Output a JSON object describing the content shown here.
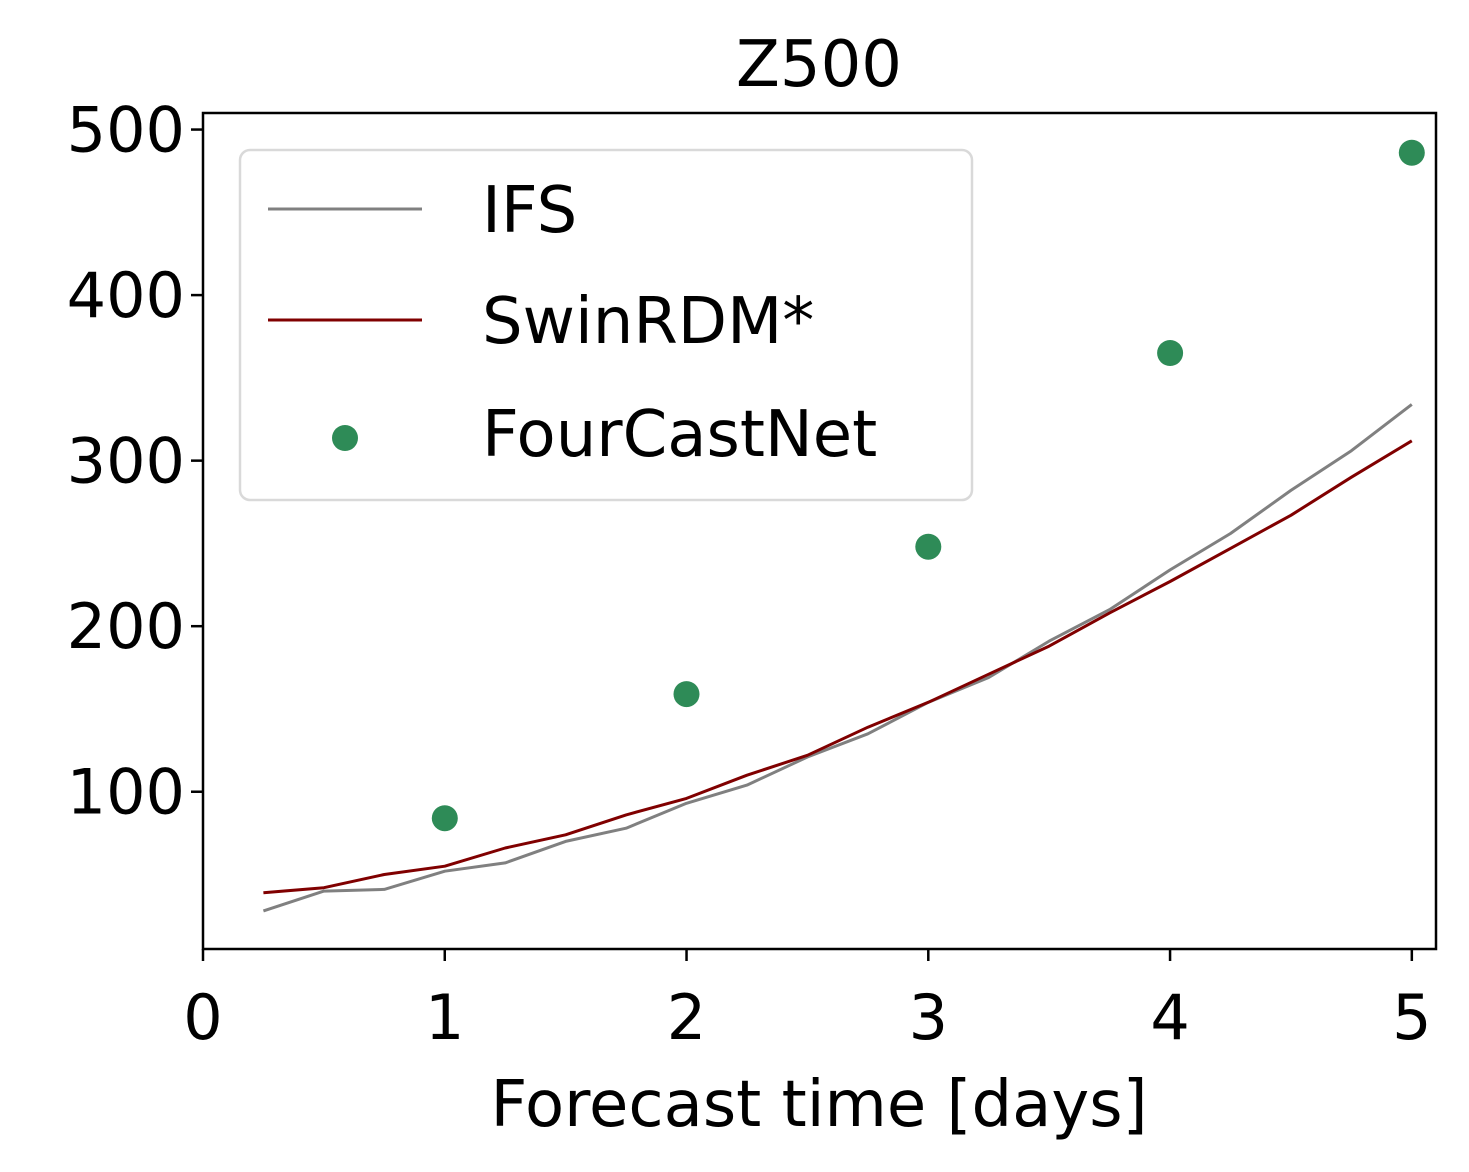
{
  "chart_data": {
    "type": "line",
    "title": "Z500",
    "xlabel": "Forecast time [days]",
    "ylabel": "",
    "xlim": [
      0,
      5.1
    ],
    "ylim": [
      5,
      510
    ],
    "xticks": [
      0,
      1,
      2,
      3,
      4,
      5
    ],
    "yticks": [
      100,
      200,
      300,
      400,
      500
    ],
    "grid": false,
    "legend_position": "top-left",
    "series": [
      {
        "name": "IFS",
        "kind": "line",
        "color": "#808080",
        "x": [
          0.25,
          0.5,
          0.75,
          1.0,
          1.25,
          1.5,
          1.75,
          2.0,
          2.25,
          2.5,
          2.75,
          3.0,
          3.25,
          3.5,
          3.75,
          4.0,
          4.25,
          4.5,
          4.75,
          5.0
        ],
        "y": [
          28,
          40,
          41,
          52,
          57,
          70,
          78,
          93,
          104,
          121,
          135,
          154,
          169,
          191,
          210,
          234,
          256,
          282,
          306,
          334
        ]
      },
      {
        "name": "SwinRDM*",
        "kind": "line",
        "color": "#800000",
        "x": [
          0.25,
          0.5,
          0.75,
          1.0,
          1.25,
          1.5,
          1.75,
          2.0,
          2.25,
          2.5,
          2.75,
          3.0,
          3.25,
          3.5,
          3.75,
          4.0,
          4.25,
          4.5,
          4.75,
          5.0
        ],
        "y": [
          39,
          42,
          50,
          55,
          66,
          74,
          86,
          96,
          110,
          122,
          139,
          154,
          171,
          188,
          208,
          227,
          247,
          267,
          290,
          312
        ]
      },
      {
        "name": "FourCastNet",
        "kind": "scatter",
        "color": "#2e8b57",
        "x": [
          1,
          2,
          3,
          4,
          5
        ],
        "y": [
          84,
          159,
          248,
          365,
          486
        ]
      }
    ]
  }
}
